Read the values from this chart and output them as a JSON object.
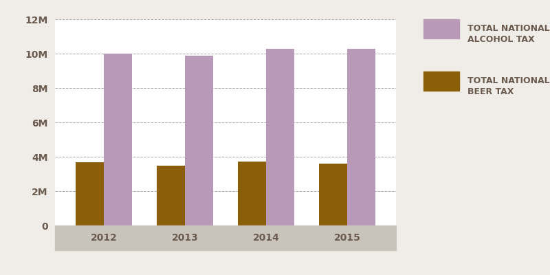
{
  "years": [
    "2012",
    "2013",
    "2014",
    "2015"
  ],
  "beer_values": [
    3700000,
    3500000,
    3720000,
    3620000
  ],
  "alcohol_values": [
    10000000,
    9900000,
    10300000,
    10300000
  ],
  "beer_color": "#8B5E0A",
  "alcohol_color": "#B899B8",
  "background_color": "#F0EDE8",
  "plot_bg_color": "#FFFFFF",
  "xaxis_band_color": "#C8C4BC",
  "legend_alcohol_label": "TOTAL NATIONAL\nALCOHOL TAX",
  "legend_beer_label": "TOTAL NATIONAL\nBEER TAX",
  "ylim": [
    0,
    12000000
  ],
  "yticks": [
    0,
    2000000,
    4000000,
    6000000,
    8000000,
    10000000,
    12000000
  ],
  "ytick_labels": [
    "0",
    "2M",
    "4M",
    "6M",
    "8M",
    "10M",
    "12M"
  ],
  "bar_width": 0.35,
  "legend_fontsize": 9,
  "tick_fontsize": 10,
  "grid_color": "#AAAAAA",
  "text_color": "#6B5B4E"
}
